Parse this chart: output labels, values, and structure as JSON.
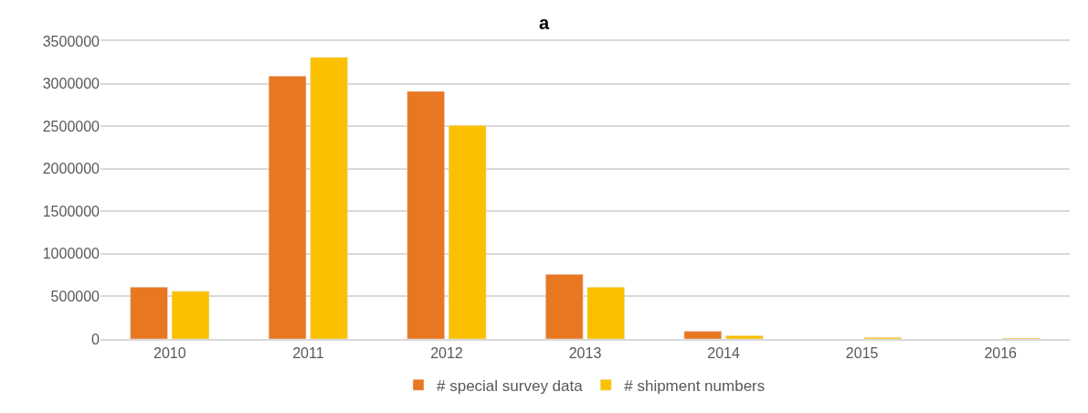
{
  "chart_data": {
    "type": "bar",
    "title": "a",
    "categories": [
      "2010",
      "2011",
      "2012",
      "2013",
      "2014",
      "2015",
      "2016"
    ],
    "series": [
      {
        "name": "# special survey data",
        "color": "#e87722",
        "values": [
          610000,
          3090000,
          2910000,
          760000,
          90000,
          null,
          null
        ]
      },
      {
        "name": "# shipment numbers",
        "color": "#fbc000",
        "values": [
          560000,
          3310000,
          2510000,
          610000,
          40000,
          20000,
          10000
        ]
      }
    ],
    "ylim": [
      0,
      3500000
    ],
    "yticks": [
      0,
      500000,
      1000000,
      1500000,
      2000000,
      2500000,
      3000000,
      3500000
    ],
    "grid": "y",
    "legend": "bottom"
  }
}
